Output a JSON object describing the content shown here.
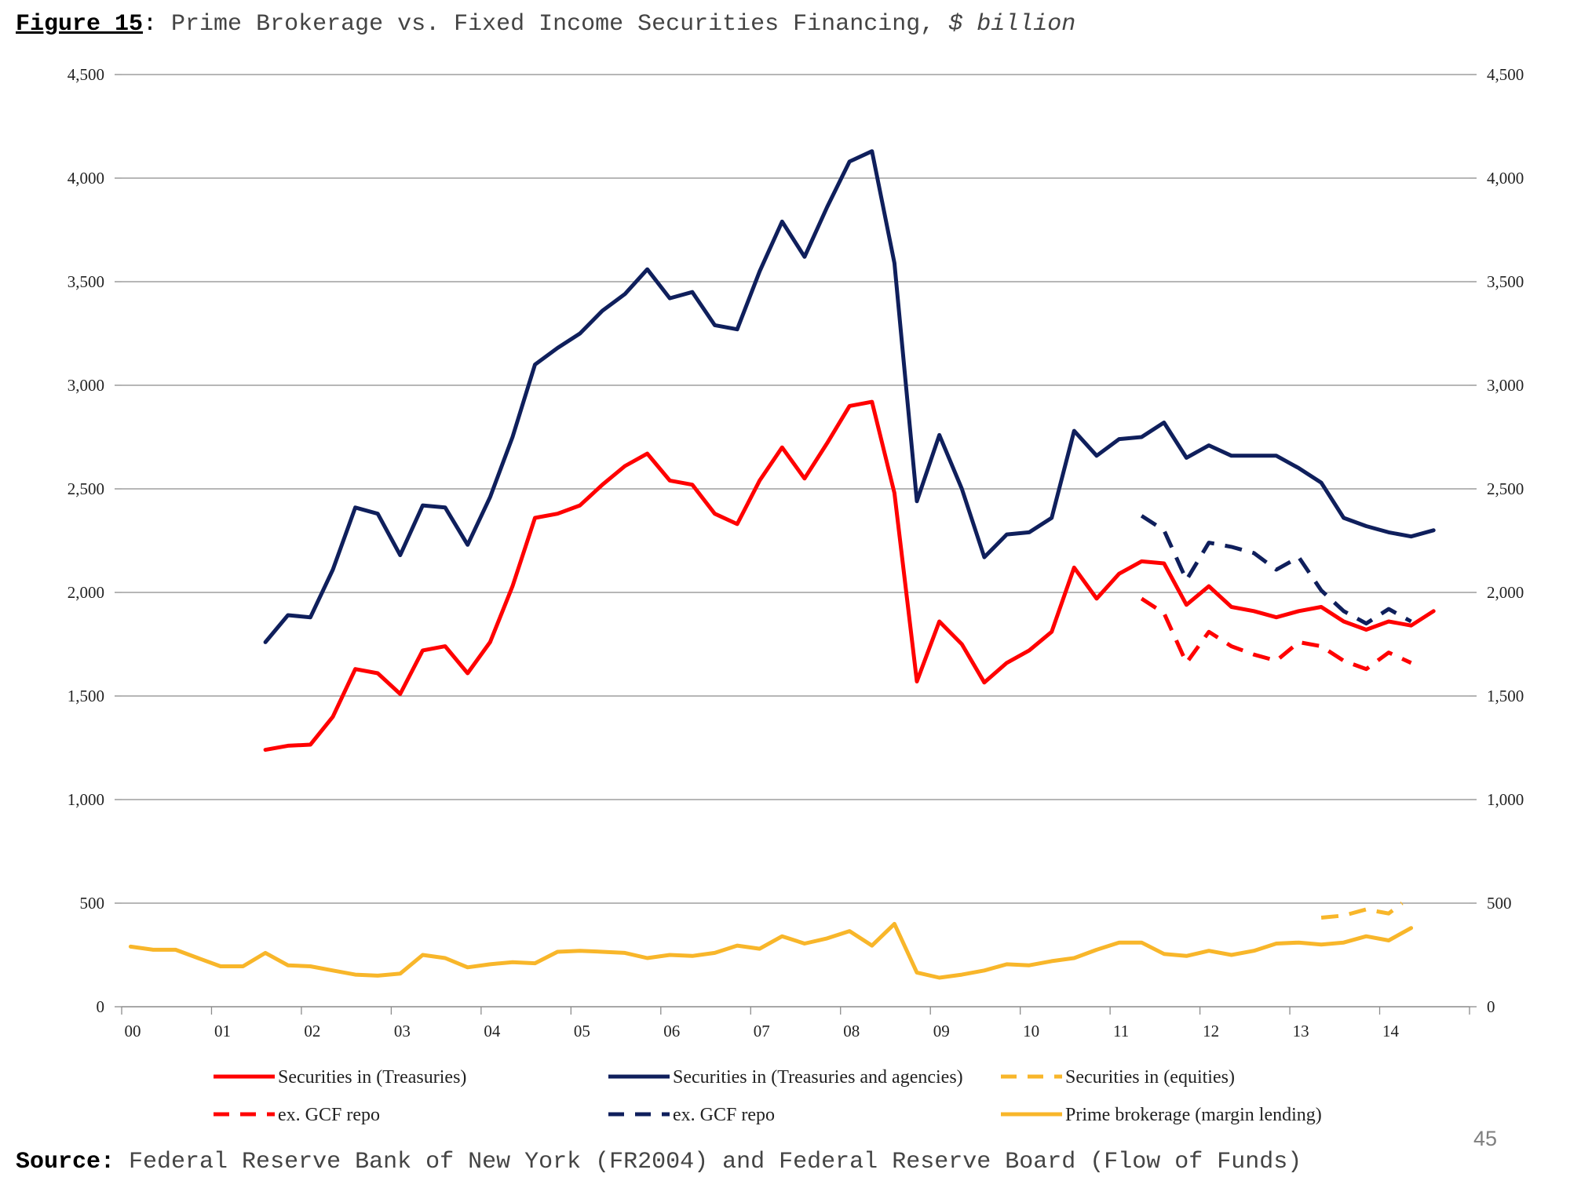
{
  "header": {
    "figure_label": "Figure 15",
    "figure_colon": ":",
    "title_text": " Prime Brokerage vs. Fixed Income Securities Financing, ",
    "title_unit": "$ billion"
  },
  "footer": {
    "source_label": "Source:",
    "source_text": " Federal Reserve Bank of New York (FR2004) and Federal Reserve Board (Flow of Funds)",
    "page_number": "45"
  },
  "chart_data": {
    "type": "line",
    "title": "Prime Brokerage vs. Fixed Income Securities Financing, $ billion",
    "xlabel": "",
    "ylabel": "",
    "x_range": [
      0,
      15
    ],
    "ylim": [
      0,
      4500
    ],
    "y_ticks": [
      0,
      500,
      1000,
      1500,
      2000,
      2500,
      3000,
      3500,
      4000,
      4500
    ],
    "y_tick_labels": [
      "0",
      "500",
      "1,000",
      "1,500",
      "2,000",
      "2,500",
      "3,000",
      "3,500",
      "4,000",
      "4,500"
    ],
    "x_tick_labels": [
      "00",
      "01",
      "02",
      "03",
      "04",
      "05",
      "06",
      "07",
      "08",
      "09",
      "10",
      "11",
      "12",
      "13",
      "14"
    ],
    "grid": true,
    "legend_position": "bottom",
    "series": [
      {
        "name": "Securities in (Treasuries)",
        "color": "#ff0000",
        "dash": false,
        "x": [
          1.6,
          1.85,
          2.1,
          2.35,
          2.6,
          2.85,
          3.1,
          3.35,
          3.6,
          3.85,
          4.1,
          4.35,
          4.6,
          4.85,
          5.1,
          5.35,
          5.6,
          5.85,
          6.1,
          6.35,
          6.6,
          6.85,
          7.1,
          7.35,
          7.6,
          7.85,
          8.1,
          8.35,
          8.6,
          8.85,
          9.1,
          9.35,
          9.6,
          9.85,
          10.1,
          10.35,
          10.6,
          10.85,
          11.1,
          11.35,
          11.6,
          11.85,
          12.1,
          12.35,
          12.6,
          12.85,
          13.1,
          13.35,
          13.6,
          13.85,
          14.1,
          14.35,
          14.6
        ],
        "values": [
          1240,
          1260,
          1265,
          1400,
          1630,
          1610,
          1510,
          1720,
          1740,
          1610,
          1760,
          2030,
          2360,
          2380,
          2420,
          2520,
          2610,
          2670,
          2540,
          2520,
          2380,
          2330,
          2540,
          2700,
          2550,
          2720,
          2900,
          2920,
          2480,
          1570,
          1860,
          1750,
          1565,
          1660,
          1720,
          1810,
          2120,
          1970,
          2090,
          2150,
          2140,
          1940,
          2030,
          1930,
          1910,
          1880,
          1910,
          1930,
          1860,
          1820,
          1860,
          1840,
          1910
        ]
      },
      {
        "name": "Securities in (Treasuries and agencies)",
        "color": "#0f1f5c",
        "dash": false,
        "x": [
          1.6,
          1.85,
          2.1,
          2.35,
          2.6,
          2.85,
          3.1,
          3.35,
          3.6,
          3.85,
          4.1,
          4.35,
          4.6,
          4.85,
          5.1,
          5.35,
          5.6,
          5.85,
          6.1,
          6.35,
          6.6,
          6.85,
          7.1,
          7.35,
          7.6,
          7.85,
          8.1,
          8.35,
          8.6,
          8.85,
          9.1,
          9.35,
          9.6,
          9.85,
          10.1,
          10.35,
          10.6,
          10.85,
          11.1,
          11.35,
          11.6,
          11.85,
          12.1,
          12.35,
          12.6,
          12.85,
          13.1,
          13.35,
          13.6,
          13.85,
          14.1,
          14.35,
          14.6
        ],
        "values": [
          1760,
          1890,
          1880,
          2110,
          2410,
          2380,
          2180,
          2420,
          2410,
          2230,
          2460,
          2750,
          3100,
          3180,
          3250,
          3360,
          3440,
          3560,
          3420,
          3450,
          3290,
          3270,
          3550,
          3790,
          3620,
          3860,
          4080,
          4130,
          3590,
          2440,
          2760,
          2500,
          2170,
          2280,
          2290,
          2360,
          2780,
          2660,
          2740,
          2750,
          2820,
          2650,
          2710,
          2660,
          2660,
          2660,
          2600,
          2530,
          2360,
          2320,
          2290,
          2270,
          2300
        ]
      },
      {
        "name": "Securities in (equities)",
        "color": "#f8b62a",
        "dash": true,
        "x": [
          13.35,
          13.6,
          13.85,
          14.1,
          14.25
        ],
        "values": [
          430,
          440,
          470,
          450,
          500
        ]
      },
      {
        "name": "ex. GCF repo (Treasuries)",
        "legend_label": "ex. GCF repo",
        "color": "#ff0000",
        "dash": true,
        "x": [
          11.35,
          11.6,
          11.85,
          12.1,
          12.35,
          12.6,
          12.85,
          13.1,
          13.35,
          13.6,
          13.85,
          14.1,
          14.35
        ],
        "values": [
          1970,
          1900,
          1660,
          1810,
          1740,
          1700,
          1670,
          1760,
          1740,
          1670,
          1630,
          1710,
          1660
        ]
      },
      {
        "name": "ex. GCF repo (Treasuries and agencies)",
        "legend_label": "ex. GCF repo",
        "color": "#0f1f5c",
        "dash": true,
        "x": [
          11.35,
          11.6,
          11.85,
          12.1,
          12.35,
          12.6,
          12.85,
          13.1,
          13.35,
          13.6,
          13.85,
          14.1,
          14.35
        ],
        "values": [
          2370,
          2300,
          2060,
          2240,
          2220,
          2190,
          2110,
          2170,
          2010,
          1910,
          1850,
          1920,
          1860
        ]
      },
      {
        "name": "Prime brokerage (margin lending)",
        "color": "#f8b62a",
        "dash": false,
        "x": [
          0.1,
          0.35,
          0.6,
          0.85,
          1.1,
          1.35,
          1.6,
          1.85,
          2.1,
          2.35,
          2.6,
          2.85,
          3.1,
          3.35,
          3.6,
          3.85,
          4.1,
          4.35,
          4.6,
          4.85,
          5.1,
          5.35,
          5.6,
          5.85,
          6.1,
          6.35,
          6.6,
          6.85,
          7.1,
          7.35,
          7.6,
          7.85,
          8.1,
          8.35,
          8.6,
          8.85,
          9.1,
          9.35,
          9.6,
          9.85,
          10.1,
          10.35,
          10.6,
          10.85,
          11.1,
          11.35,
          11.6,
          11.85,
          12.1,
          12.35,
          12.6,
          12.85,
          13.1,
          13.35,
          13.6,
          13.85,
          14.1,
          14.35
        ],
        "values": [
          290,
          275,
          275,
          235,
          195,
          195,
          260,
          200,
          195,
          175,
          155,
          150,
          160,
          250,
          235,
          190,
          205,
          215,
          210,
          265,
          270,
          265,
          260,
          235,
          250,
          245,
          260,
          295,
          280,
          340,
          305,
          330,
          365,
          295,
          400,
          165,
          140,
          155,
          175,
          205,
          200,
          220,
          235,
          275,
          310,
          310,
          255,
          245,
          270,
          250,
          270,
          305,
          310,
          300,
          310,
          340,
          320,
          380
        ]
      }
    ],
    "legend": [
      {
        "label": "Securities in (Treasuries)",
        "color": "#ff0000",
        "dash": false
      },
      {
        "label": "Securities in (Treasuries and agencies)",
        "color": "#0f1f5c",
        "dash": false
      },
      {
        "label": "Securities in (equities)",
        "color": "#f8b62a",
        "dash": true
      },
      {
        "label": "ex. GCF repo",
        "color": "#ff0000",
        "dash": true
      },
      {
        "label": "ex. GCF repo",
        "color": "#0f1f5c",
        "dash": true
      },
      {
        "label": "Prime brokerage (margin lending)",
        "color": "#f8b62a",
        "dash": false
      }
    ]
  }
}
